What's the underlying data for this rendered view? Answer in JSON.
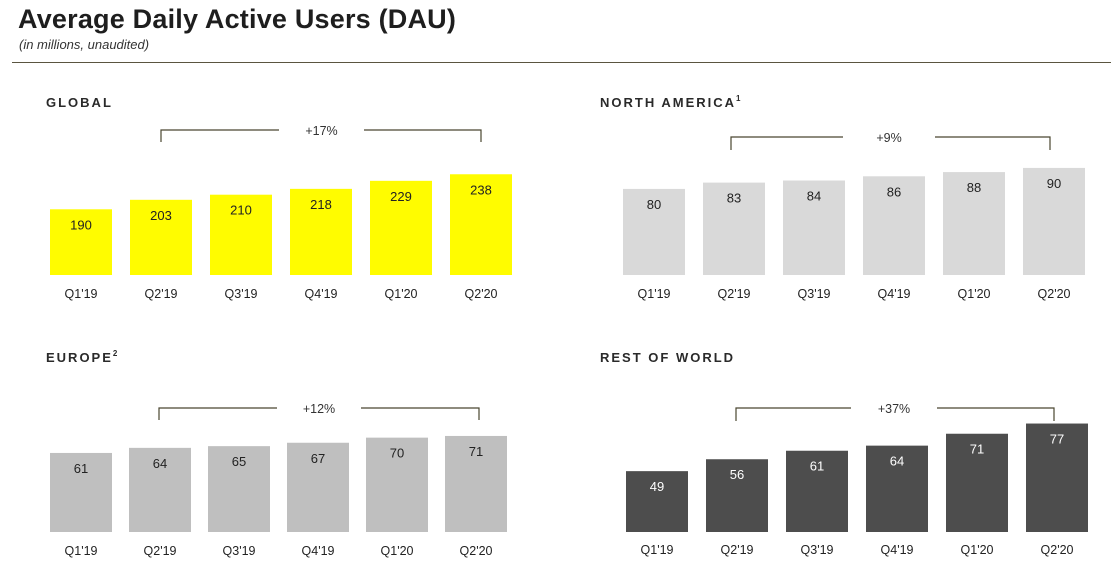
{
  "header": {
    "title": "Average Daily Active Users (DAU)",
    "subtitle": "(in millions, unaudited)"
  },
  "chart_data": [
    {
      "type": "bar",
      "title": "GLOBAL",
      "superscript": "",
      "categories": [
        "Q1'19",
        "Q2'19",
        "Q3'19",
        "Q4'19",
        "Q1'20",
        "Q2'20"
      ],
      "values": [
        190,
        203,
        210,
        218,
        229,
        238
      ],
      "growth_label": "+17%",
      "growth_from": "Q2'19",
      "growth_to": "Q2'20",
      "bar_color": "#FFFC00",
      "label_color": "#222222"
    },
    {
      "type": "bar",
      "title": "NORTH AMERICA",
      "superscript": "1",
      "categories": [
        "Q1'19",
        "Q2'19",
        "Q3'19",
        "Q4'19",
        "Q1'20",
        "Q2'20"
      ],
      "values": [
        80,
        83,
        84,
        86,
        88,
        90
      ],
      "growth_label": "+9%",
      "growth_from": "Q2'19",
      "growth_to": "Q2'20",
      "bar_color": "#D9D9D9",
      "label_color": "#222222"
    },
    {
      "type": "bar",
      "title": "EUROPE",
      "superscript": "2",
      "categories": [
        "Q1'19",
        "Q2'19",
        "Q3'19",
        "Q4'19",
        "Q1'20",
        "Q2'20"
      ],
      "values": [
        61,
        64,
        65,
        67,
        70,
        71
      ],
      "growth_label": "+12%",
      "growth_from": "Q2'19",
      "growth_to": "Q2'20",
      "bar_color": "#BFBFBF",
      "label_color": "#222222"
    },
    {
      "type": "bar",
      "title": "REST OF WORLD",
      "superscript": "",
      "categories": [
        "Q1'19",
        "Q2'19",
        "Q3'19",
        "Q4'19",
        "Q1'20",
        "Q2'20"
      ],
      "values": [
        49,
        56,
        61,
        64,
        71,
        77
      ],
      "growth_label": "+37%",
      "growth_from": "Q2'19",
      "growth_to": "Q2'20",
      "bar_color": "#4D4D4D",
      "label_color": "#FFFFFF"
    }
  ]
}
